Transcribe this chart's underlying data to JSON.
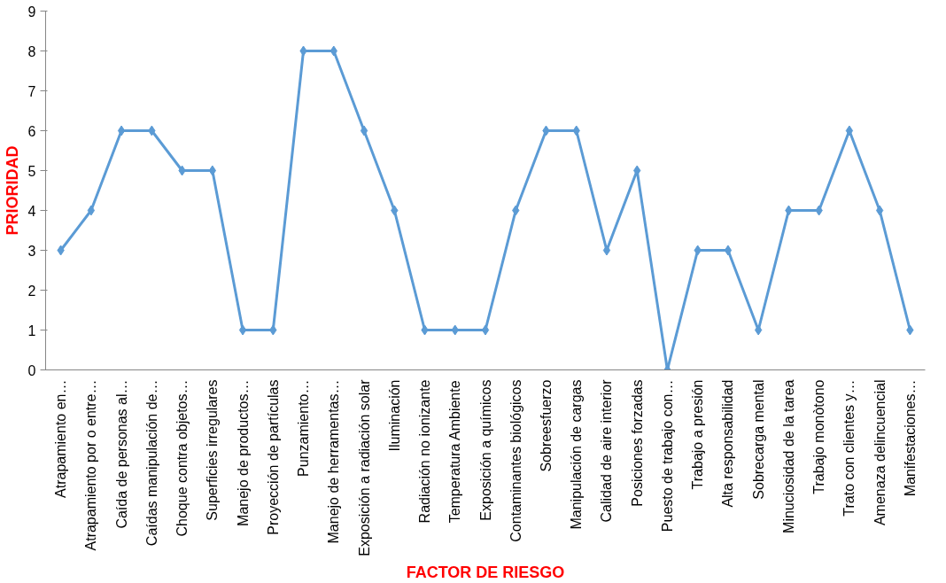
{
  "chart_data": {
    "type": "line",
    "xlabel": "FACTOR DE RIESGO",
    "ylabel": "PRIORIDAD",
    "categories": [
      "Atrapamiento en…",
      "Atrapamiento por o entre…",
      "Caída de personas al…",
      "Caídas manipulación de…",
      "Choque contra objetos…",
      "Superficies irregulares",
      "Manejo de productos…",
      "Proyección de partículas",
      "Punzamiento…",
      "Manejo de herramentas…",
      "Exposición a radiación solar",
      "Iluminación",
      "Radiación no ionizante",
      "Temperatura Ambiente",
      "Exposición a químicos",
      "Contaminantes biológicos",
      "Sobreesfuerzo",
      "Manipulación de cargas",
      "Calidad de aire interior",
      "Posiciones forzadas",
      "Puesto de trabajo con…",
      "Trabajo a presión",
      "Alta responsabilidad",
      "Sobrecarga mental",
      "Minuciosidad de la tarea",
      "Trabajo monòtono",
      "Trato con clientes y…",
      "Amenaza delincuencial",
      "Manifestaciones…"
    ],
    "series": [
      {
        "color": "#5b9bd5",
        "values": [
          3,
          4,
          6,
          6,
          5,
          5,
          1,
          1,
          8,
          8,
          6,
          4,
          1,
          1,
          1,
          4,
          6,
          6,
          3,
          5,
          0,
          3,
          3,
          1,
          4,
          4,
          6,
          4,
          1
        ]
      }
    ],
    "ylim": [
      0,
      9
    ],
    "yticks": [
      0,
      1,
      2,
      3,
      4,
      5,
      6,
      7,
      8,
      9
    ],
    "grid": false,
    "marker": "diamond",
    "line_style": "solid"
  }
}
